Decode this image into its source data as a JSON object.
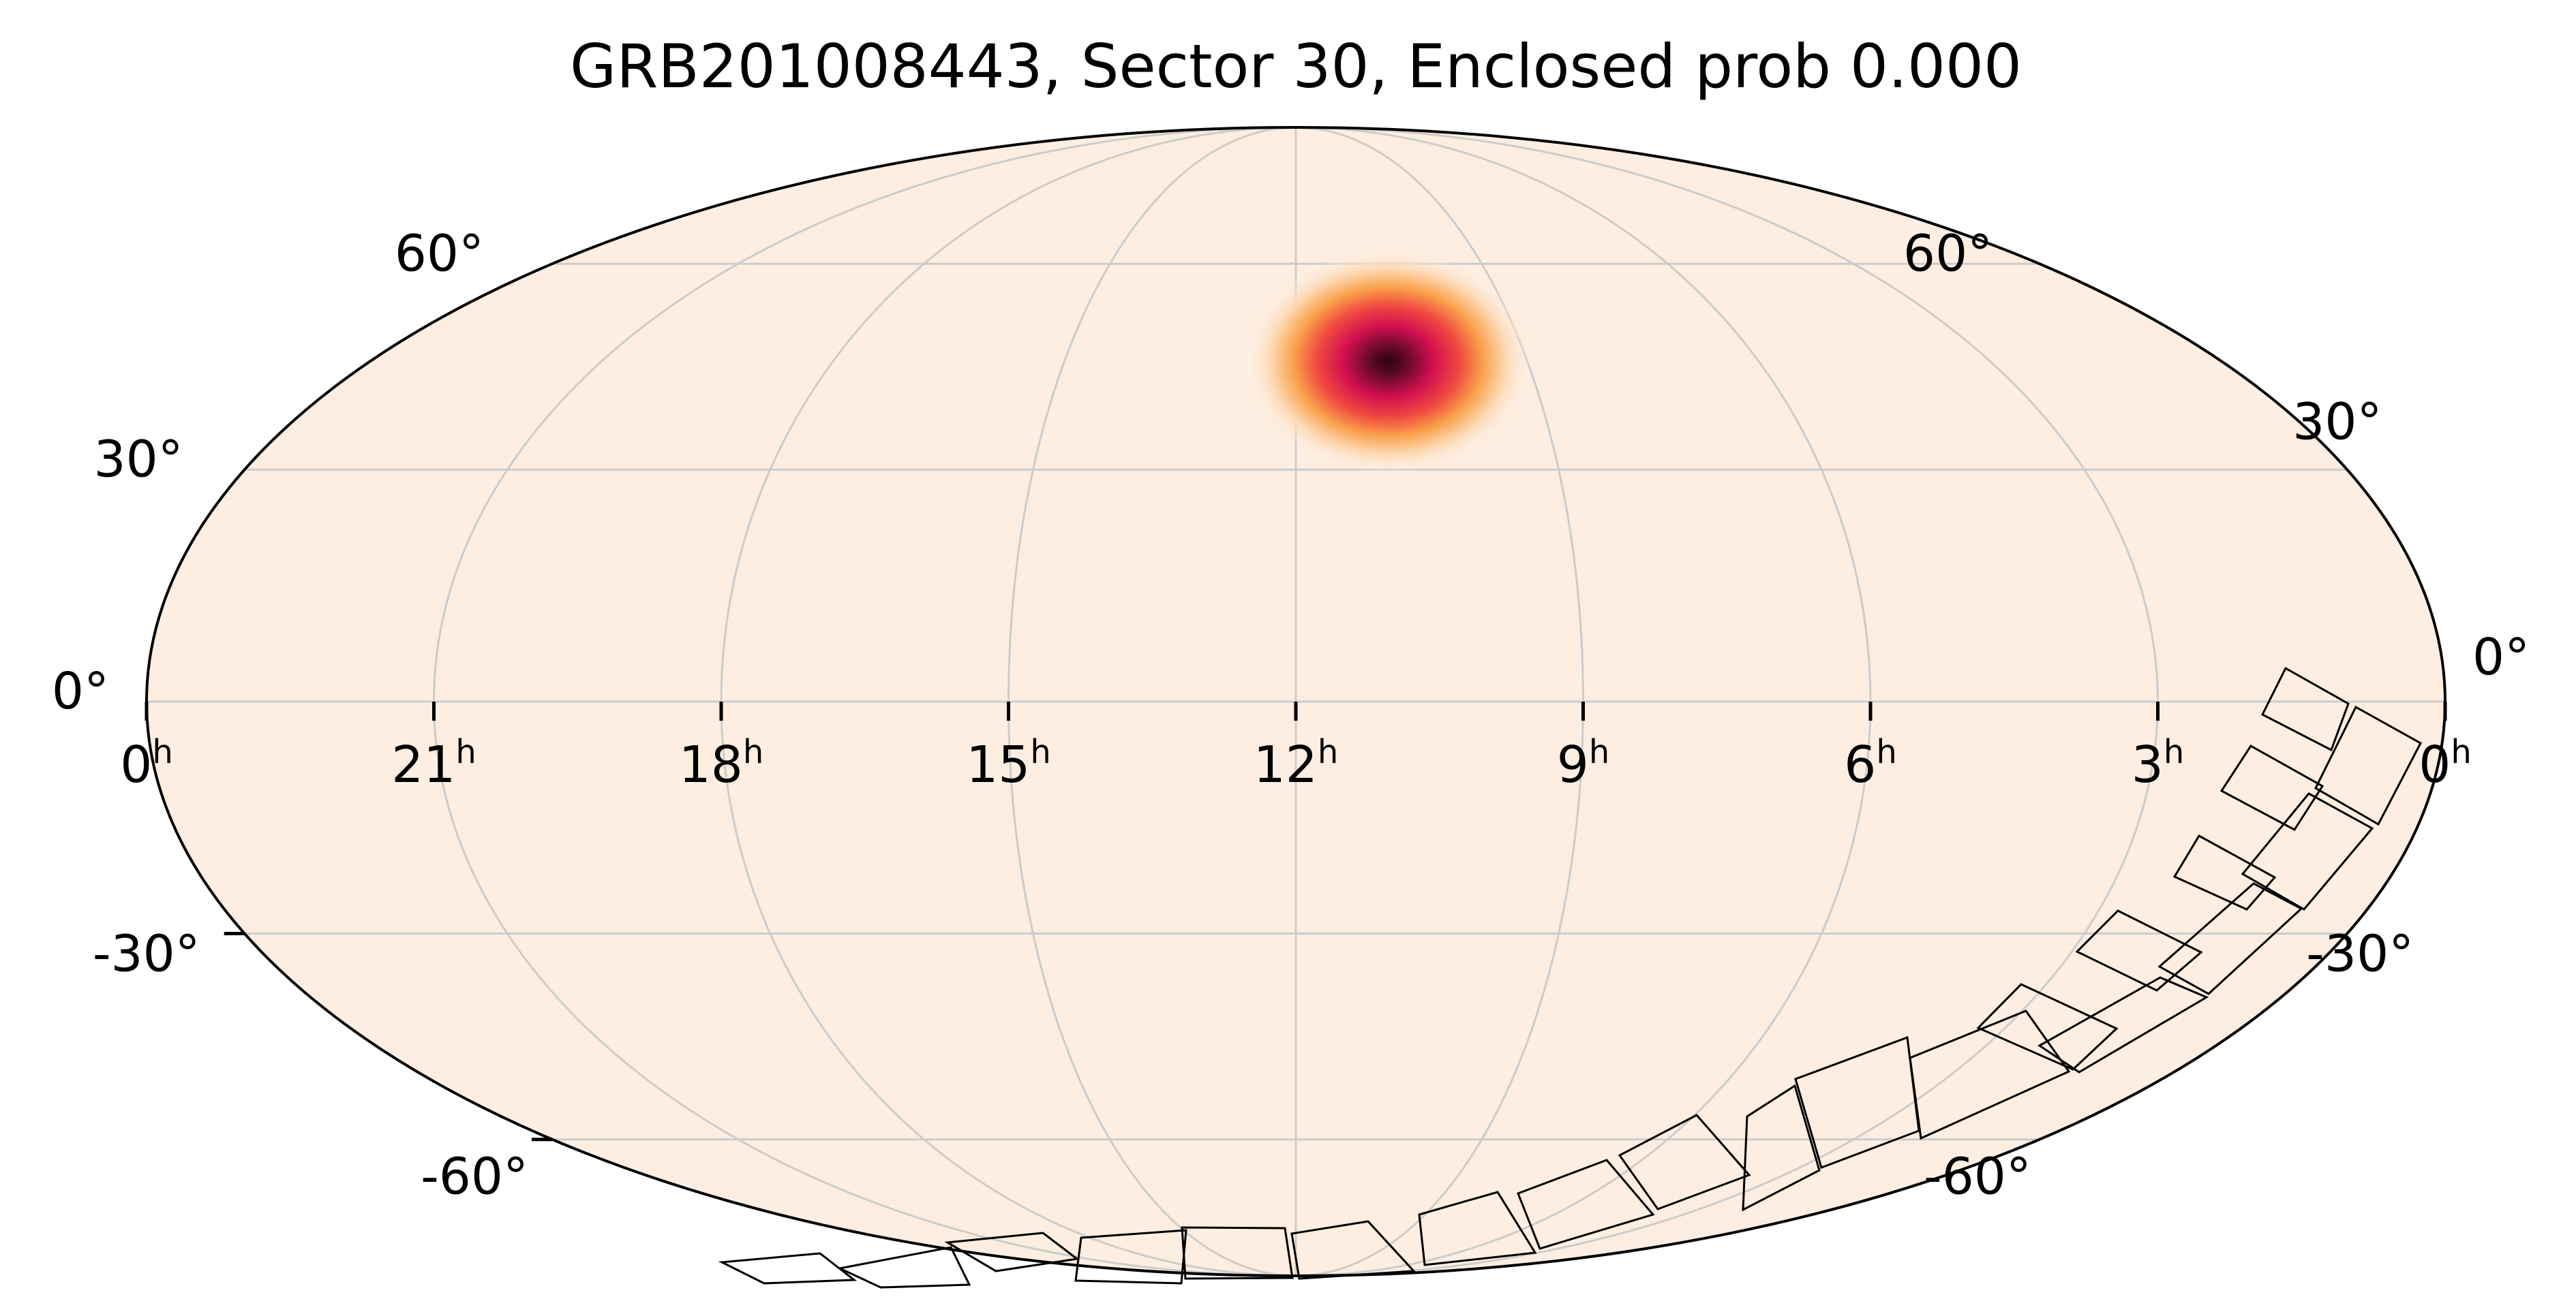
{
  "title": "GRB201008443, Sector 30, Enclosed prob 0.000",
  "projection": "mollweide",
  "ra_axis": {
    "direction": "increasing to the left",
    "ticks": [
      {
        "hours": 0,
        "text": "0",
        "sup": "h"
      },
      {
        "hours": 21,
        "text": "21",
        "sup": "h"
      },
      {
        "hours": 18,
        "text": "18",
        "sup": "h"
      },
      {
        "hours": 15,
        "text": "15",
        "sup": "h"
      },
      {
        "hours": 12,
        "text": "12",
        "sup": "h"
      },
      {
        "hours": 9,
        "text": "9",
        "sup": "h"
      },
      {
        "hours": 6,
        "text": "6",
        "sup": "h"
      },
      {
        "hours": 3,
        "text": "3",
        "sup": "h"
      },
      {
        "hours": 0,
        "text": "0",
        "sup": "h"
      }
    ]
  },
  "dec_axis": {
    "left_ticks": [
      {
        "deg": 60,
        "text": "60°"
      },
      {
        "deg": 30,
        "text": "30°"
      },
      {
        "deg": 0,
        "text": "0°"
      },
      {
        "deg": -30,
        "text": "-30°"
      },
      {
        "deg": -60,
        "text": "-60°"
      }
    ],
    "right_ticks": [
      {
        "deg": 60,
        "text": "60°"
      },
      {
        "deg": 30,
        "text": "30°"
      },
      {
        "deg": 0,
        "text": "0°"
      },
      {
        "deg": -30,
        "text": "-30°"
      },
      {
        "deg": -60,
        "text": "-60°"
      }
    ]
  },
  "grid": true,
  "colors": {
    "background_fill": "#fdeee1",
    "grid": "#cccccc",
    "outline": "#000000",
    "hotspot_core": "#2a0412",
    "hotspot_mid": "#e0105a",
    "hotspot_outer": "#f78a3a"
  },
  "probability_hotspot": {
    "ra_hours": 10.8,
    "dec_deg": 45
  },
  "chart_data": {
    "type": "heatmap",
    "title": "GRB201008443, Sector 30, Enclosed prob 0.000",
    "xlabel": "",
    "ylabel": "",
    "x_ticks": [
      "0h",
      "21h",
      "18h",
      "15h",
      "12h",
      "9h",
      "6h",
      "3h",
      "0h"
    ],
    "y_ticks": [
      "60°",
      "30°",
      "0°",
      "-30°",
      "-60°"
    ],
    "peak": {
      "ra_hours": 10.8,
      "dec_deg": 45
    },
    "enclosed_prob": 0.0,
    "sector": 30
  }
}
